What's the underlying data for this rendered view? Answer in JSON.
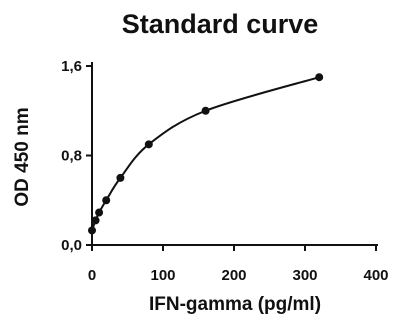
{
  "chart_data": {
    "type": "scatter",
    "title": "Standard curve",
    "xlabel": "IFN-gamma (pg/ml)",
    "ylabel": "OD 450 nm",
    "xlim": [
      0,
      400
    ],
    "ylim": [
      0,
      1.6
    ],
    "x_ticks": [
      "0",
      "100",
      "200",
      "300",
      "400"
    ],
    "y_ticks": [
      "0,0",
      "0,8",
      "1,6"
    ],
    "grid": false,
    "series": [
      {
        "x": [
          0,
          5,
          10,
          20,
          40,
          80,
          160,
          320
        ],
        "y": [
          0.13,
          0.22,
          0.29,
          0.4,
          0.6,
          0.9,
          1.2,
          1.5
        ]
      }
    ],
    "fit_curve": true,
    "colors": {
      "line": "#111111",
      "marker": "#111111",
      "axis": "#111111"
    }
  }
}
